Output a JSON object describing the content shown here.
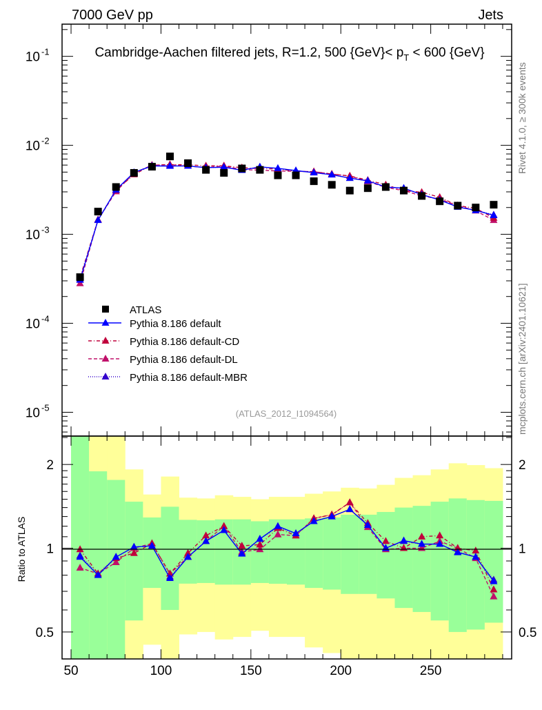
{
  "header": {
    "left": "7000 GeV pp",
    "right": "Jets",
    "side_top": "Rivet 4.1.0, ≥ 300k events",
    "side_bottom": "mcplots.cern.ch [arXiv:2401.10621]",
    "watermark": "(ATLAS_2012_I1094564)"
  },
  "chart_data": [
    {
      "type": "scatter",
      "panel": "main",
      "title": "Cambridge-Aachen filtered jets, R=1.2, 500 {GeV}< p_T < 600 {GeV}",
      "title_main": "Cambridge-Aachen filtered jets, R=1.2, 500 {GeV}< p",
      "title_sub": "T",
      "title_end": " < 600 {GeV}",
      "yscale": "log",
      "ylim": [
        5.4e-06,
        0.23
      ],
      "xlim": [
        45,
        295
      ],
      "ytick_labels": [
        {
          "base": "10",
          "exp": "-1",
          "value": 0.1
        },
        {
          "base": "10",
          "exp": "-2",
          "value": 0.01
        },
        {
          "base": "10",
          "exp": "-3",
          "value": 0.001
        },
        {
          "base": "10",
          "exp": "-4",
          "value": 0.0001
        },
        {
          "base": "10",
          "exp": "-5",
          "value": 1e-05
        }
      ],
      "legend_placement": "lower-left",
      "x": [
        55,
        65,
        75,
        85,
        95,
        105,
        115,
        125,
        135,
        145,
        155,
        165,
        175,
        185,
        195,
        205,
        215,
        225,
        235,
        245,
        255,
        265,
        275,
        285
      ],
      "data": {
        "name": "ATLAS",
        "values": [
          0.00033,
          0.0018,
          0.0034,
          0.0049,
          0.00575,
          0.0075,
          0.0063,
          0.0053,
          0.0049,
          0.0055,
          0.0053,
          0.0046,
          0.0046,
          0.00395,
          0.0036,
          0.0031,
          0.0033,
          0.0034,
          0.0031,
          0.0027,
          0.00235,
          0.0021,
          0.002,
          0.00215
        ]
      },
      "note": "MC series values = ratio_to_data x ATLAS values"
    },
    {
      "type": "line",
      "panel": "ratio",
      "ylabel": "Ratio to ATLAS",
      "yscale": "log",
      "ylim": [
        0.4,
        2.53
      ],
      "xlim": [
        45,
        295
      ],
      "ytick_labels": [
        {
          "label": "2",
          "value": 2
        },
        {
          "label": "1",
          "value": 1
        },
        {
          "label": "0.5",
          "value": 0.5
        }
      ],
      "xtick_labels": [
        {
          "label": "50",
          "value": 50
        },
        {
          "label": "100",
          "value": 100
        },
        {
          "label": "150",
          "value": 150
        },
        {
          "label": "200",
          "value": 200
        },
        {
          "label": "250",
          "value": 250
        }
      ],
      "bin_edges": [
        50,
        60,
        70,
        80,
        90,
        100,
        110,
        120,
        130,
        140,
        150,
        160,
        170,
        180,
        190,
        200,
        210,
        220,
        230,
        240,
        250,
        260,
        270,
        280,
        290
      ],
      "bands": {
        "green_color": "#99ff99",
        "yellow_color": "#ffff99",
        "yellow_lo": [
          0.3,
          0.3,
          0.3,
          0.3,
          0.45,
          0.3,
          0.49,
          0.5,
          0.47,
          0.48,
          0.505,
          0.48,
          0.48,
          0.44,
          0.42,
          0.3,
          0.3,
          0.3,
          0.3,
          0.3,
          0.3,
          0.3,
          0.3,
          0.3
        ],
        "green_lo": [
          0.3,
          0.3,
          0.3,
          0.55,
          0.72,
          0.6,
          0.746,
          0.75,
          0.74,
          0.74,
          0.75,
          0.745,
          0.74,
          0.72,
          0.71,
          0.685,
          0.685,
          0.66,
          0.61,
          0.59,
          0.55,
          0.5,
          0.51,
          0.54
        ],
        "green_hi": [
          3,
          1.89,
          1.76,
          1.47,
          1.29,
          1.41,
          1.265,
          1.26,
          1.27,
          1.27,
          1.25,
          1.27,
          1.27,
          1.28,
          1.29,
          1.32,
          1.32,
          1.35,
          1.4,
          1.42,
          1.47,
          1.51,
          1.49,
          1.48
        ],
        "yellow_hi": [
          3,
          3,
          3,
          1.92,
          1.56,
          1.81,
          1.52,
          1.51,
          1.55,
          1.53,
          1.5,
          1.53,
          1.53,
          1.57,
          1.6,
          1.65,
          1.64,
          1.69,
          1.79,
          1.83,
          1.92,
          2.02,
          1.99,
          1.94
        ]
      },
      "series": [
        {
          "name": "Pythia 8.186 default",
          "color": "#0000ff",
          "dash": "",
          "values": [
            0.93,
            0.8,
            0.93,
            1.01,
            1.02,
            0.78,
            0.93,
            1.06,
            1.16,
            0.955,
            1.08,
            1.2,
            1.13,
            1.25,
            1.3,
            1.38,
            1.21,
            1.0,
            1.065,
            1.035,
            1.035,
            0.966,
            0.93,
            0.76
          ]
        },
        {
          "name": "Pythia 8.186 default-CD",
          "color": "#c0003c",
          "dash": "5,3,1,3",
          "values": [
            0.99,
            0.81,
            0.92,
            0.96,
            1.04,
            0.81,
            0.96,
            1.11,
            1.2,
            1.02,
            1.03,
            1.18,
            1.11,
            1.28,
            1.32,
            1.46,
            1.23,
            1.06,
            1.0,
            1.1,
            1.11,
            1.0,
            0.98,
            0.71
          ]
        },
        {
          "name": "Pythia 8.186 default-DL",
          "color": "#c0106a",
          "dash": "5,3",
          "values": [
            0.85,
            0.81,
            0.89,
            1.0,
            1.04,
            0.81,
            0.93,
            1.06,
            1.2,
            0.97,
            0.99,
            1.12,
            1.11,
            1.28,
            1.32,
            1.46,
            1.19,
            0.99,
            1.0,
            1.0,
            1.06,
            1.0,
            0.92,
            0.67
          ]
        },
        {
          "name": "Pythia 8.186 default-MBR",
          "color": "#3300cc",
          "dash": "1,2",
          "values": [
            0.94,
            0.81,
            0.93,
            1.01,
            1.02,
            0.79,
            0.93,
            1.06,
            1.16,
            0.96,
            1.08,
            1.19,
            1.13,
            1.25,
            1.3,
            1.38,
            1.21,
            1.0,
            1.06,
            1.035,
            1.035,
            0.97,
            0.93,
            0.77
          ]
        }
      ]
    }
  ]
}
